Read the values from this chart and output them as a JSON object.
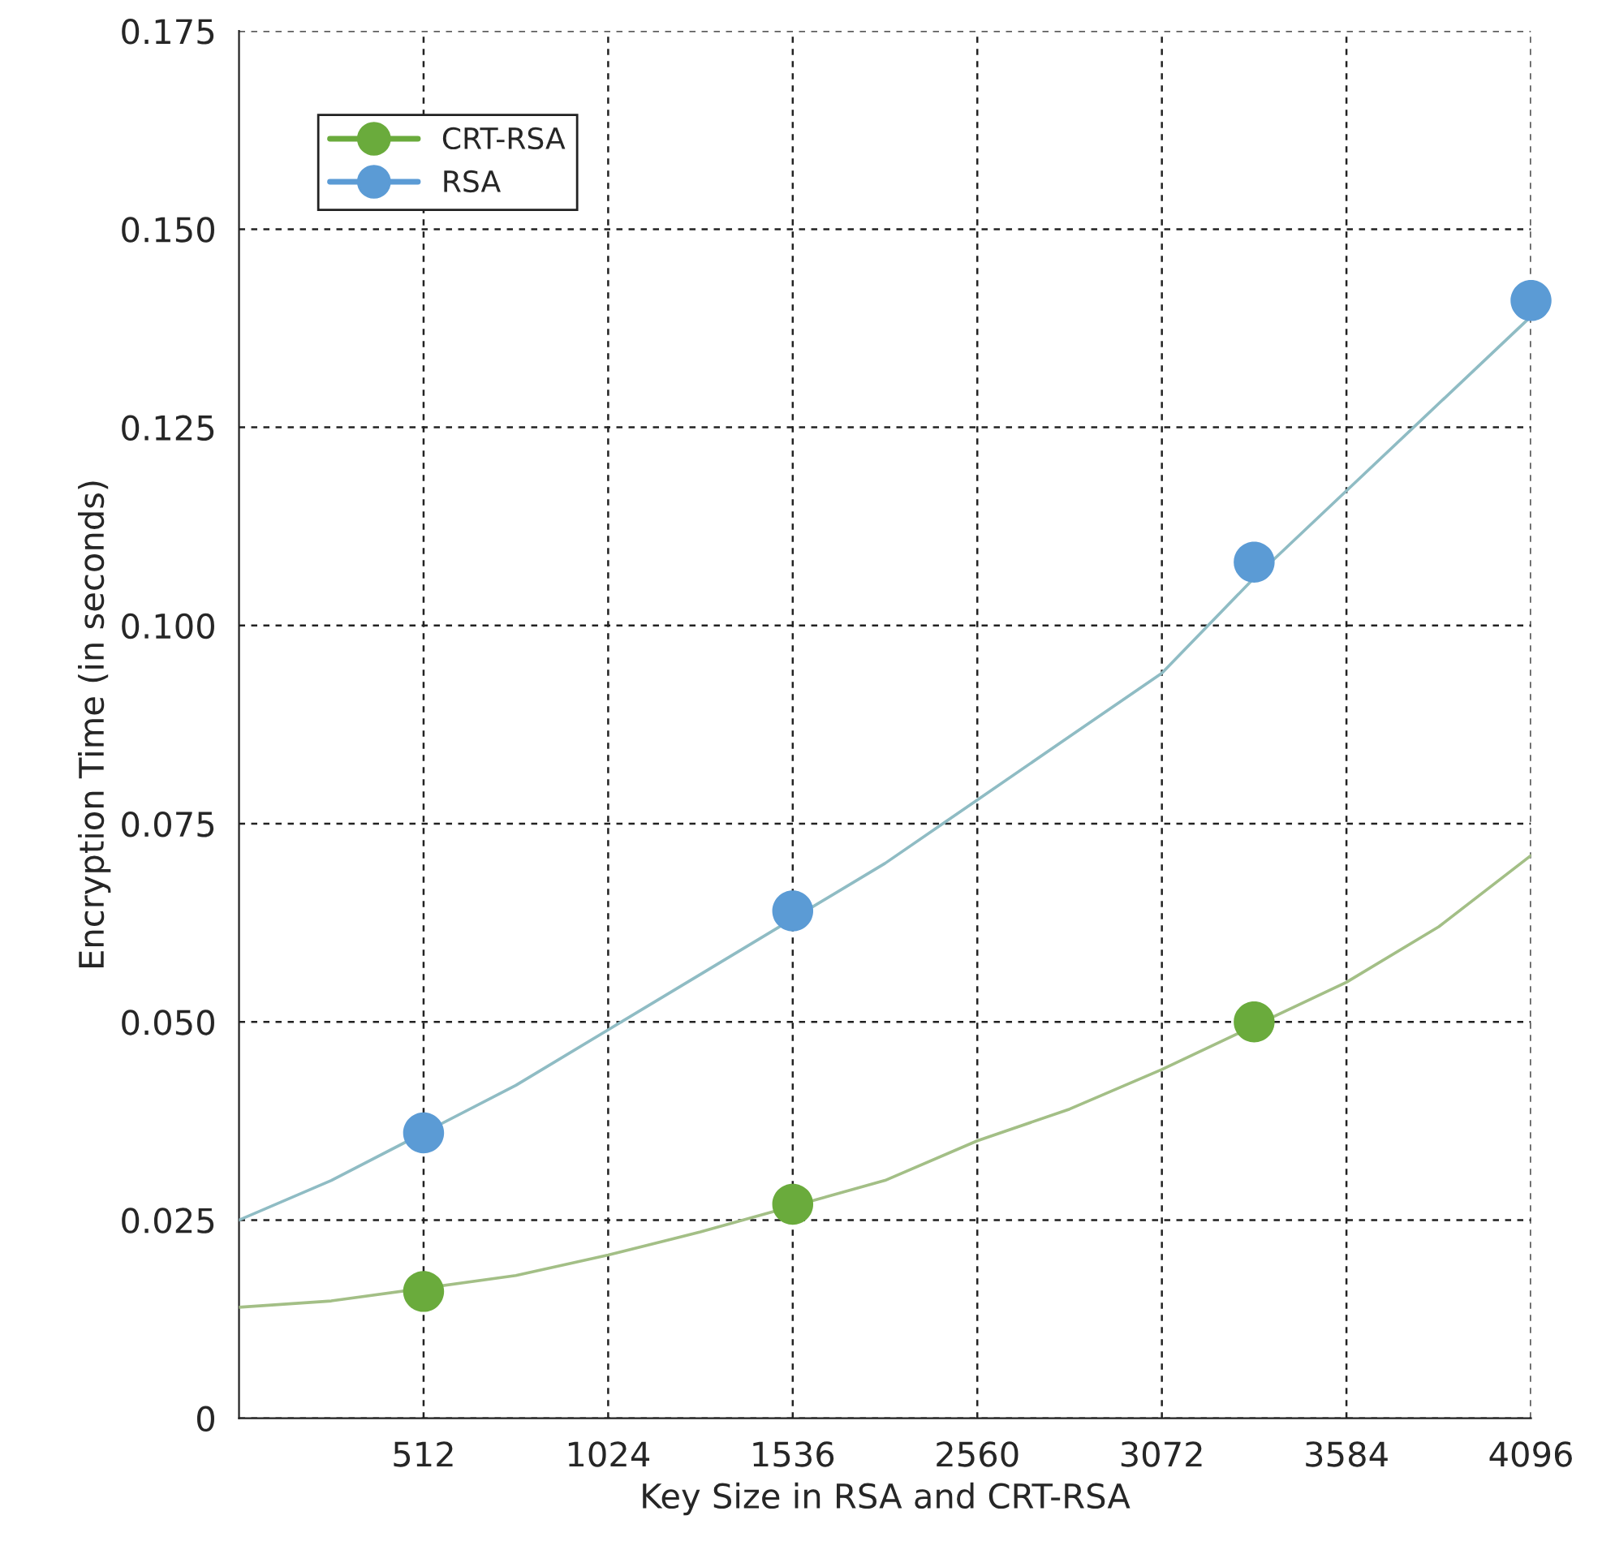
{
  "chart_data": {
    "type": "scatter",
    "xlabel": "Key Size in RSA and CRT-RSA",
    "ylabel": "Encryption Time (in seconds)",
    "categories": [
      null,
      null,
      "512",
      null,
      "1024",
      null,
      "1536",
      null,
      "2560",
      null,
      "3072",
      null,
      "3584",
      null,
      "4096"
    ],
    "ylim": [
      0,
      0.175
    ],
    "yticks": [
      {
        "value": 0,
        "label": "0"
      },
      {
        "value": 0.025,
        "label": "0.025"
      },
      {
        "value": 0.05,
        "label": "0.050"
      },
      {
        "value": 0.075,
        "label": "0.075"
      },
      {
        "value": 0.1,
        "label": "0.100"
      },
      {
        "value": 0.125,
        "label": "0.125"
      },
      {
        "value": 0.15,
        "label": "0.150"
      },
      {
        "value": 0.175,
        "label": "0.175"
      }
    ],
    "grid": true,
    "legend": "top left",
    "marker": "circle",
    "series": [
      {
        "name": "CRT-RSA",
        "color": "#6aab3c",
        "values": [
          null,
          null,
          0.016,
          null,
          null,
          null,
          0.027,
          null,
          null,
          null,
          null,
          0.05,
          null,
          null,
          null
        ]
      },
      {
        "name": "RSA",
        "color": "#5b9bd5",
        "values": [
          null,
          null,
          0.036,
          null,
          null,
          null,
          0.064,
          null,
          null,
          null,
          null,
          0.108,
          null,
          null,
          0.141
        ]
      },
      {
        "type": "line",
        "marker": "none",
        "color": "#a3bf86",
        "values": [
          0.014,
          0.0148,
          null,
          0.018,
          0.0206,
          0.0235,
          null,
          0.03,
          0.035,
          0.039,
          0.044,
          null,
          0.055,
          0.062,
          0.071
        ]
      },
      {
        "type": "line",
        "marker": "none",
        "color": "#8fbcc4",
        "values": [
          0.025,
          0.03,
          0.036,
          0.042,
          0.049,
          0.056,
          null,
          0.07,
          0.078,
          0.086,
          0.094,
          0.106,
          0.117,
          0.128,
          0.139
        ]
      }
    ]
  }
}
